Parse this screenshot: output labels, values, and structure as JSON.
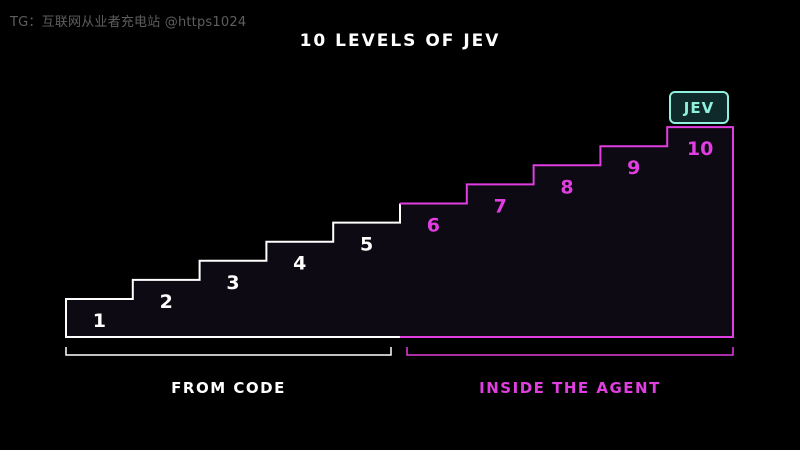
{
  "watermark": "TG：互联网从业者充电站 @https1024",
  "title": "10 LEVELS OF JEV",
  "badge": "JEV",
  "colors": {
    "background": "#000000",
    "fill": "#0e0a13",
    "code": "#ffffff",
    "agent": "#e03ee0",
    "badge": "#8ff0de"
  },
  "levels": [
    {
      "label": "1",
      "group": "code"
    },
    {
      "label": "2",
      "group": "code"
    },
    {
      "label": "3",
      "group": "code"
    },
    {
      "label": "4",
      "group": "code"
    },
    {
      "label": "5",
      "group": "code"
    },
    {
      "label": "6",
      "group": "agent"
    },
    {
      "label": "7",
      "group": "agent"
    },
    {
      "label": "8",
      "group": "agent"
    },
    {
      "label": "9",
      "group": "agent"
    },
    {
      "label": "10",
      "group": "agent"
    }
  ],
  "groups": {
    "code": {
      "label": "FROM CODE"
    },
    "agent": {
      "label": "INSIDE THE AGENT"
    }
  }
}
